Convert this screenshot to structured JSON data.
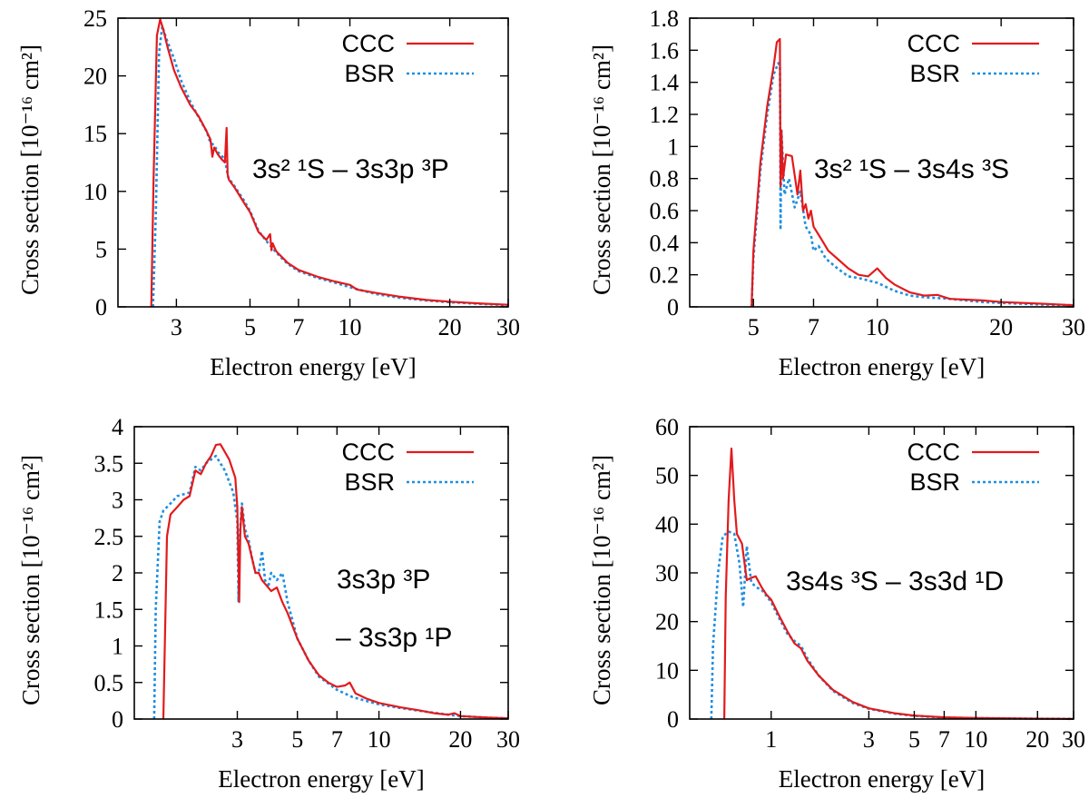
{
  "colors": {
    "ccc": "#e31a1c",
    "bsr": "#1f8fe0",
    "axes": "#000000"
  },
  "chart_data": [
    {
      "type": "line",
      "panel": "top-left",
      "xscale": "log",
      "xlim": [
        2.0,
        30
      ],
      "ylim": [
        0,
        25
      ],
      "xticks": [
        3,
        5,
        7,
        10,
        20,
        30
      ],
      "xtick_labels": [
        "3",
        "5",
        "7",
        "10",
        "20",
        "30"
      ],
      "yticks": [
        0,
        5,
        10,
        15,
        20,
        25
      ],
      "ytick_labels": [
        "0",
        "5",
        "10",
        "15",
        "20",
        "25"
      ],
      "xlabel": "Electron energy [eV]",
      "ylabel": "Cross section [10⁻¹⁶ cm²]",
      "legend": [
        "CCC",
        "BSR"
      ],
      "legend_position": "top-right",
      "annotations": [
        {
          "lines": [
            "3s² ¹S – 3s3p ³P"
          ],
          "position": "right-middle"
        }
      ],
      "series": [
        {
          "name": "CCC",
          "style": "solid",
          "x": [
            2.52,
            2.56,
            2.62,
            2.68,
            2.74,
            2.82,
            2.95,
            3.1,
            3.3,
            3.5,
            3.7,
            3.8,
            3.85,
            3.9,
            4.0,
            4.1,
            4.2,
            4.25,
            4.28,
            4.32,
            4.5,
            4.8,
            5.0,
            5.3,
            5.6,
            5.75,
            5.8,
            5.85,
            6.0,
            6.5,
            7.0,
            8.0,
            9.0,
            10.0,
            10.5,
            12.0,
            14.0,
            17.0,
            20.0,
            22.0,
            25.0,
            30.0
          ],
          "values": [
            0,
            11,
            23.5,
            24.9,
            24.0,
            22.5,
            20.5,
            19.0,
            17.5,
            16.5,
            15.2,
            14.5,
            13.0,
            13.8,
            13.2,
            12.8,
            12.5,
            15.5,
            11.5,
            11.0,
            10.3,
            9.0,
            8.2,
            6.5,
            5.8,
            6.3,
            4.9,
            5.5,
            4.8,
            3.8,
            3.2,
            2.6,
            2.2,
            1.9,
            1.5,
            1.2,
            0.9,
            0.6,
            0.45,
            0.38,
            0.28,
            0.18
          ]
        },
        {
          "name": "BSR",
          "style": "dotted",
          "x": [
            2.55,
            2.6,
            2.66,
            2.72,
            2.8,
            2.95,
            3.1,
            3.3,
            3.5,
            3.7,
            3.8,
            3.9,
            4.0,
            4.2,
            4.3,
            4.5,
            4.8,
            5.0,
            5.3,
            5.6,
            5.8,
            6.0,
            6.5,
            7.0,
            8.0,
            9.0,
            10.0,
            12.0,
            14.0,
            17.0,
            20.0,
            25.0,
            30.0
          ],
          "values": [
            0,
            8,
            22.0,
            24.3,
            23.2,
            21.5,
            19.6,
            17.8,
            16.4,
            15.2,
            14.2,
            14.0,
            13.4,
            12.8,
            11.2,
            10.4,
            9.2,
            8.3,
            6.6,
            5.7,
            5.2,
            4.7,
            3.7,
            3.1,
            2.5,
            2.1,
            1.7,
            1.1,
            0.8,
            0.55,
            0.4,
            0.25,
            0.15
          ]
        }
      ]
    },
    {
      "type": "line",
      "panel": "top-right",
      "xscale": "log",
      "xlim": [
        3.5,
        30
      ],
      "ylim": [
        0,
        1.8
      ],
      "xticks": [
        5,
        7,
        10,
        20,
        30
      ],
      "xtick_labels": [
        "5",
        "7",
        "10",
        "20",
        "30"
      ],
      "yticks": [
        0,
        0.2,
        0.4,
        0.6,
        0.8,
        1.0,
        1.2,
        1.4,
        1.6,
        1.8
      ],
      "ytick_labels": [
        "0",
        "0.2",
        "0.4",
        "0.6",
        "0.8",
        "1",
        "1.2",
        "1.4",
        "1.6",
        "1.8"
      ],
      "xlabel": "Electron energy [eV]",
      "ylabel": "Cross section [10⁻¹⁶ cm²]",
      "legend": [
        "CCC",
        "BSR"
      ],
      "legend_position": "top-right",
      "annotations": [
        {
          "lines": [
            "3s² ¹S – 3s4s ³S"
          ],
          "position": "right-middle"
        }
      ],
      "series": [
        {
          "name": "CCC",
          "style": "solid",
          "x": [
            4.95,
            5.0,
            5.2,
            5.4,
            5.6,
            5.7,
            5.75,
            5.8,
            5.82,
            5.85,
            5.9,
            6.0,
            6.2,
            6.4,
            6.5,
            6.6,
            6.7,
            6.8,
            6.9,
            7.0,
            7.2,
            7.4,
            7.6,
            8.0,
            8.5,
            9.0,
            9.5,
            10.0,
            10.5,
            11.0,
            12.0,
            13.0,
            14.0,
            15.0,
            18.0,
            20.0,
            25.0,
            30.0
          ],
          "values": [
            0,
            0.35,
            0.9,
            1.25,
            1.5,
            1.65,
            1.66,
            1.67,
            0.75,
            1.1,
            0.8,
            0.95,
            0.94,
            0.7,
            0.85,
            0.6,
            0.64,
            0.55,
            0.6,
            0.5,
            0.45,
            0.4,
            0.35,
            0.3,
            0.24,
            0.2,
            0.19,
            0.24,
            0.18,
            0.14,
            0.09,
            0.07,
            0.075,
            0.05,
            0.04,
            0.03,
            0.02,
            0.01
          ]
        },
        {
          "name": "BSR",
          "style": "dotted",
          "x": [
            4.95,
            5.0,
            5.2,
            5.4,
            5.6,
            5.75,
            5.8,
            5.82,
            5.85,
            5.95,
            6.1,
            6.3,
            6.5,
            6.7,
            6.9,
            7.0,
            7.2,
            7.5,
            8.0,
            8.5,
            9.0,
            10.0,
            11.0,
            12.0,
            13.0,
            15.0,
            18.0,
            20.0,
            25.0,
            30.0
          ],
          "values": [
            0,
            0.3,
            0.85,
            1.2,
            1.45,
            1.52,
            1.5,
            0.48,
            1.1,
            0.7,
            0.8,
            0.62,
            0.72,
            0.5,
            0.45,
            0.35,
            0.38,
            0.3,
            0.24,
            0.19,
            0.18,
            0.15,
            0.1,
            0.07,
            0.06,
            0.05,
            0.03,
            0.025,
            0.015,
            0.01
          ]
        }
      ]
    },
    {
      "type": "line",
      "panel": "bottom-left",
      "xscale": "log",
      "xlim": [
        1.25,
        30
      ],
      "ylim": [
        0,
        4
      ],
      "xticks": [
        3,
        5,
        7,
        10,
        20,
        30
      ],
      "xtick_labels": [
        "3",
        "5",
        "7",
        "10",
        "20",
        "30"
      ],
      "yticks": [
        0,
        0.5,
        1.0,
        1.5,
        2.0,
        2.5,
        3.0,
        3.5,
        4.0
      ],
      "ytick_labels": [
        "0",
        "0.5",
        "1",
        "1.5",
        "2",
        "2.5",
        "3",
        "3.5",
        "4"
      ],
      "xlabel": "Electron energy [eV]",
      "ylabel": "Cross section [10⁻¹⁶ cm²]",
      "legend": [
        "CCC",
        "BSR"
      ],
      "legend_position": "top-right",
      "annotations": [
        {
          "lines": [
            "3s3p ³P",
            "– 3s3p ¹P"
          ],
          "position": "right-middle"
        }
      ],
      "series": [
        {
          "name": "CCC",
          "style": "solid",
          "x": [
            1.6,
            1.62,
            1.65,
            1.7,
            1.8,
            1.9,
            2.0,
            2.1,
            2.2,
            2.3,
            2.4,
            2.5,
            2.6,
            2.8,
            2.95,
            3.0,
            3.05,
            3.08,
            3.12,
            3.2,
            3.3,
            3.4,
            3.5,
            3.6,
            3.7,
            3.8,
            3.9,
            4.0,
            4.2,
            4.4,
            4.6,
            5.0,
            5.5,
            6.0,
            6.5,
            7.0,
            7.5,
            7.8,
            8.2,
            9.0,
            10.0,
            12.0,
            14.0,
            16.0,
            18.0,
            19.0,
            20.0,
            25.0,
            30.0
          ],
          "values": [
            0,
            1.0,
            2.5,
            2.8,
            2.9,
            3.0,
            3.05,
            3.4,
            3.35,
            3.5,
            3.6,
            3.75,
            3.76,
            3.55,
            3.3,
            2.9,
            1.6,
            2.6,
            2.9,
            2.5,
            2.4,
            2.2,
            2.0,
            2.0,
            1.9,
            1.85,
            1.8,
            1.75,
            1.8,
            1.6,
            1.45,
            1.1,
            0.8,
            0.6,
            0.5,
            0.44,
            0.46,
            0.5,
            0.35,
            0.28,
            0.22,
            0.16,
            0.12,
            0.08,
            0.06,
            0.08,
            0.04,
            0.02,
            0.01
          ]
        },
        {
          "name": "BSR",
          "style": "dotted",
          "x": [
            1.48,
            1.5,
            1.55,
            1.6,
            1.7,
            1.8,
            2.0,
            2.1,
            2.2,
            2.3,
            2.5,
            2.7,
            2.9,
            3.0,
            3.03,
            3.06,
            3.12,
            3.2,
            3.3,
            3.4,
            3.5,
            3.6,
            3.7,
            3.8,
            3.9,
            4.0,
            4.2,
            4.4,
            4.6,
            5.0,
            5.5,
            6.0,
            7.0,
            8.0,
            10.0,
            12.0,
            15.0,
            18.0,
            20.0,
            25.0,
            30.0
          ],
          "values": [
            0,
            1.5,
            2.7,
            2.85,
            2.95,
            3.05,
            3.1,
            3.45,
            3.4,
            3.5,
            3.6,
            3.4,
            3.1,
            2.7,
            1.6,
            2.5,
            2.95,
            2.6,
            2.45,
            2.2,
            2.0,
            2.0,
            2.3,
            1.9,
            1.8,
            2.0,
            1.9,
            2.0,
            1.6,
            1.1,
            0.8,
            0.58,
            0.4,
            0.3,
            0.2,
            0.15,
            0.1,
            0.06,
            0.04,
            0.02,
            0.01
          ]
        }
      ]
    },
    {
      "type": "line",
      "panel": "bottom-right",
      "xscale": "log",
      "xlim": [
        0.4,
        30
      ],
      "ylim": [
        0,
        60
      ],
      "xticks": [
        1,
        3,
        5,
        7,
        10,
        20,
        30
      ],
      "xtick_labels": [
        "1",
        "3",
        "5",
        "7",
        "10",
        "20",
        "30"
      ],
      "yticks": [
        0,
        10,
        20,
        30,
        40,
        50,
        60
      ],
      "ytick_labels": [
        "0",
        "10",
        "20",
        "30",
        "40",
        "50",
        "60"
      ],
      "xlabel": "Electron energy [eV]",
      "ylabel": "Cross section [10⁻¹⁶ cm²]",
      "legend": [
        "CCC",
        "BSR"
      ],
      "legend_position": "top-right",
      "annotations": [
        {
          "lines": [
            "3s4s ³S – 3s3d ¹D"
          ],
          "position": "right-middle"
        }
      ],
      "series": [
        {
          "name": "CCC",
          "style": "solid",
          "x": [
            0.59,
            0.6,
            0.62,
            0.64,
            0.66,
            0.68,
            0.72,
            0.76,
            0.8,
            0.84,
            0.9,
            0.95,
            1.0,
            1.1,
            1.2,
            1.3,
            1.4,
            1.5,
            1.7,
            2.0,
            2.5,
            3.0,
            4.0,
            5.0,
            7.0,
            10.0,
            20.0,
            30.0
          ],
          "values": [
            0,
            25,
            45,
            55.5,
            45,
            38,
            36,
            28.5,
            29,
            29.3,
            27,
            25.5,
            24.5,
            21,
            18,
            15.5,
            14.5,
            12,
            9,
            6,
            3.5,
            2.2,
            1.2,
            0.7,
            0.35,
            0.2,
            0.08,
            0.04
          ]
        },
        {
          "name": "BSR",
          "style": "dotted",
          "x": [
            0.51,
            0.52,
            0.55,
            0.58,
            0.62,
            0.66,
            0.7,
            0.73,
            0.76,
            0.8,
            0.85,
            0.9,
            1.0,
            1.1,
            1.2,
            1.3,
            1.4,
            1.5,
            1.7,
            2.0,
            2.5,
            3.0,
            4.0,
            5.0,
            7.0,
            10.0,
            20.0,
            30.0
          ],
          "values": [
            0,
            15,
            30,
            37.5,
            38.5,
            38,
            32,
            23,
            35.5,
            28,
            27,
            26.5,
            24,
            20.5,
            17.5,
            16,
            15,
            12.5,
            9,
            5.8,
            3.3,
            2.1,
            1.1,
            0.65,
            0.3,
            0.18,
            0.07,
            0.03
          ]
        }
      ]
    }
  ]
}
